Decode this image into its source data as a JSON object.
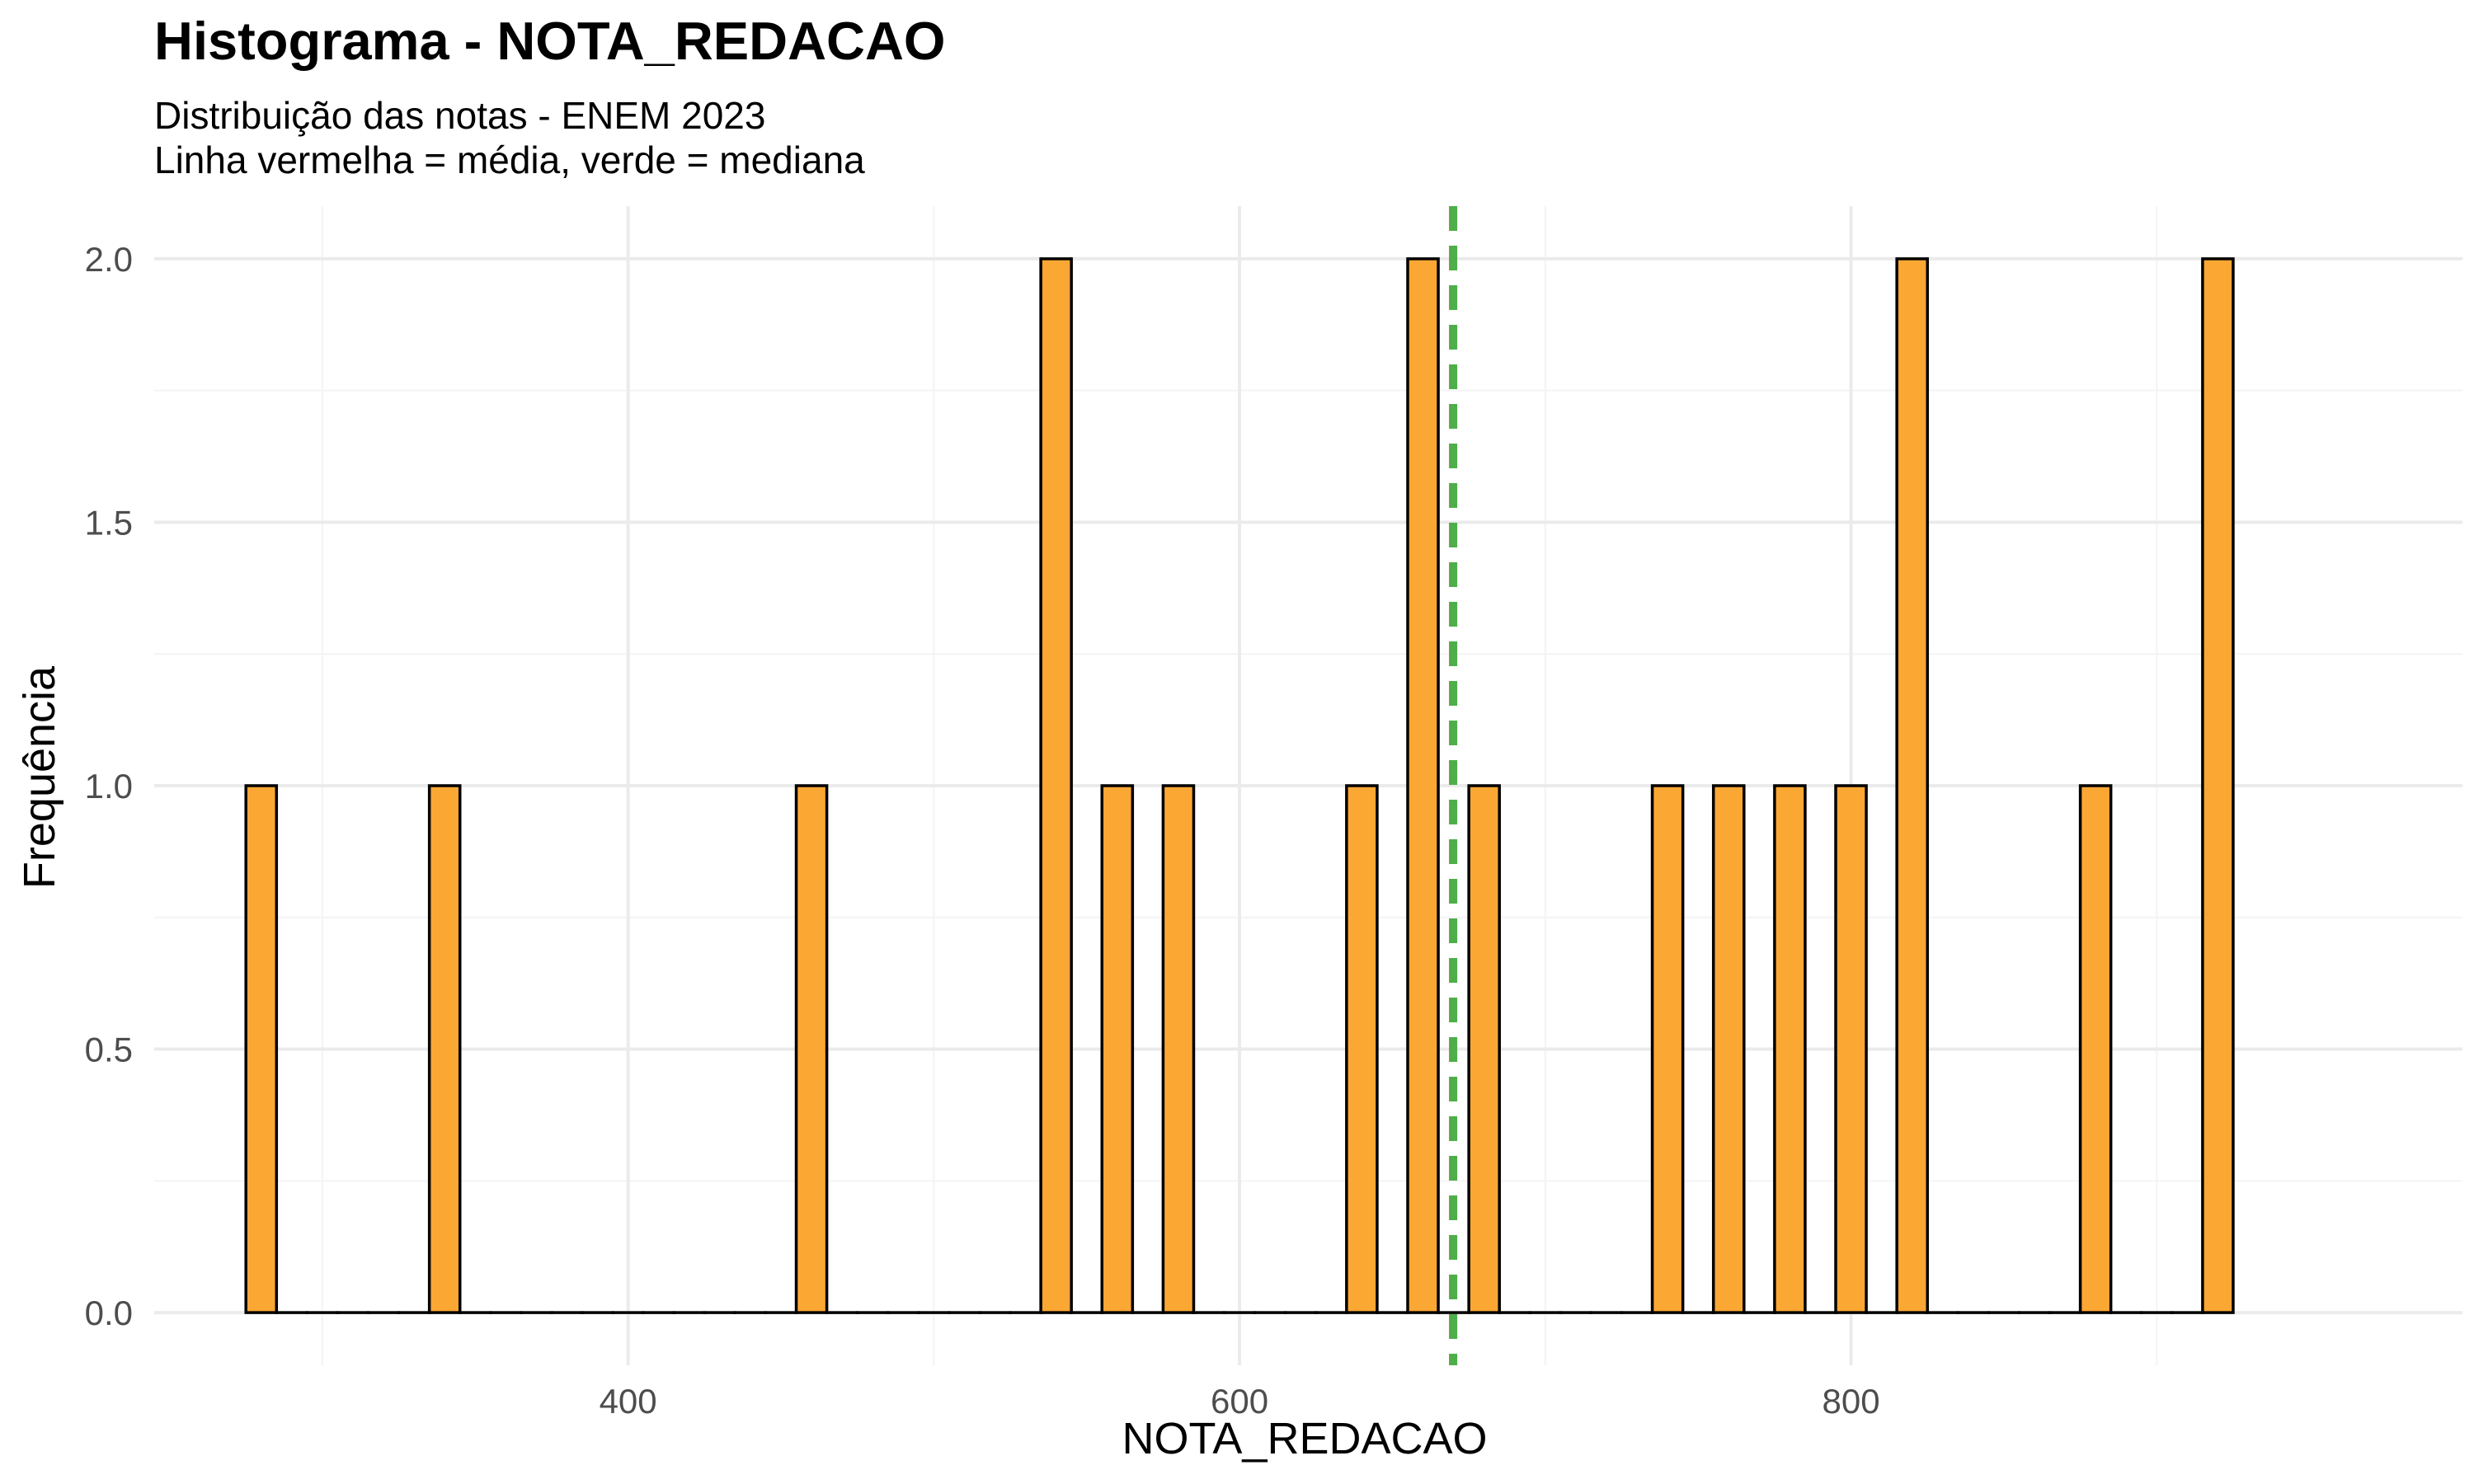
{
  "chart_data": {
    "type": "bar",
    "title": "Histograma - NOTA_REDACAO",
    "subtitle_lines": [
      "Distribuição das notas - ENEM 2023",
      "Linha vermelha = média, verde = mediana"
    ],
    "xlabel": "NOTA_REDACAO",
    "ylabel": "Frequência",
    "xlim": [
      245,
      1000
    ],
    "ylim": [
      -0.1,
      2.1
    ],
    "x_ticks": [
      400,
      600,
      800
    ],
    "x_tick_labels": [
      "400",
      "600",
      "800"
    ],
    "x_minor_ticks": [
      300,
      500,
      700,
      900
    ],
    "y_ticks": [
      0,
      0.5,
      1,
      1.5,
      2
    ],
    "y_tick_labels": [
      "0.0",
      "0.5",
      "1.0",
      "1.5",
      "2.0"
    ],
    "y_minor_ticks": [
      0.25,
      0.75,
      1.25,
      1.75
    ],
    "grid": true,
    "bin_width": 10,
    "bins": [
      {
        "x": 280,
        "count": 1
      },
      {
        "x": 290,
        "count": 0
      },
      {
        "x": 300,
        "count": 0
      },
      {
        "x": 310,
        "count": 0
      },
      {
        "x": 320,
        "count": 0
      },
      {
        "x": 330,
        "count": 0
      },
      {
        "x": 340,
        "count": 1
      },
      {
        "x": 350,
        "count": 0
      },
      {
        "x": 360,
        "count": 0
      },
      {
        "x": 370,
        "count": 0
      },
      {
        "x": 380,
        "count": 0
      },
      {
        "x": 390,
        "count": 0
      },
      {
        "x": 400,
        "count": 0
      },
      {
        "x": 410,
        "count": 0
      },
      {
        "x": 420,
        "count": 0
      },
      {
        "x": 430,
        "count": 0
      },
      {
        "x": 440,
        "count": 0
      },
      {
        "x": 450,
        "count": 0
      },
      {
        "x": 460,
        "count": 1
      },
      {
        "x": 470,
        "count": 0
      },
      {
        "x": 480,
        "count": 0
      },
      {
        "x": 490,
        "count": 0
      },
      {
        "x": 500,
        "count": 0
      },
      {
        "x": 510,
        "count": 0
      },
      {
        "x": 520,
        "count": 0
      },
      {
        "x": 530,
        "count": 0
      },
      {
        "x": 540,
        "count": 2
      },
      {
        "x": 550,
        "count": 0
      },
      {
        "x": 560,
        "count": 1
      },
      {
        "x": 570,
        "count": 0
      },
      {
        "x": 580,
        "count": 1
      },
      {
        "x": 590,
        "count": 0
      },
      {
        "x": 600,
        "count": 0
      },
      {
        "x": 610,
        "count": 0
      },
      {
        "x": 620,
        "count": 0
      },
      {
        "x": 630,
        "count": 0
      },
      {
        "x": 640,
        "count": 1
      },
      {
        "x": 650,
        "count": 0
      },
      {
        "x": 660,
        "count": 2
      },
      {
        "x": 670,
        "count": 0
      },
      {
        "x": 680,
        "count": 1
      },
      {
        "x": 690,
        "count": 0
      },
      {
        "x": 700,
        "count": 0
      },
      {
        "x": 710,
        "count": 0
      },
      {
        "x": 720,
        "count": 0
      },
      {
        "x": 730,
        "count": 0
      },
      {
        "x": 740,
        "count": 1
      },
      {
        "x": 750,
        "count": 0
      },
      {
        "x": 760,
        "count": 1
      },
      {
        "x": 770,
        "count": 0
      },
      {
        "x": 780,
        "count": 1
      },
      {
        "x": 790,
        "count": 0
      },
      {
        "x": 800,
        "count": 1
      },
      {
        "x": 810,
        "count": 0
      },
      {
        "x": 820,
        "count": 2
      },
      {
        "x": 830,
        "count": 0
      },
      {
        "x": 840,
        "count": 0
      },
      {
        "x": 850,
        "count": 0
      },
      {
        "x": 860,
        "count": 0
      },
      {
        "x": 870,
        "count": 0
      },
      {
        "x": 880,
        "count": 1
      },
      {
        "x": 890,
        "count": 0
      },
      {
        "x": 900,
        "count": 0
      },
      {
        "x": 910,
        "count": 0
      },
      {
        "x": 920,
        "count": 2
      }
    ],
    "mean": 669.5,
    "median": 670,
    "colors": {
      "bar_fill": "#FBA734",
      "bar_outline": "#000000",
      "mean_line": "#D9412B",
      "median_line": "#4DAF4A",
      "grid_major": "#EBEBEB",
      "grid_minor": "#F4F4F4"
    }
  }
}
